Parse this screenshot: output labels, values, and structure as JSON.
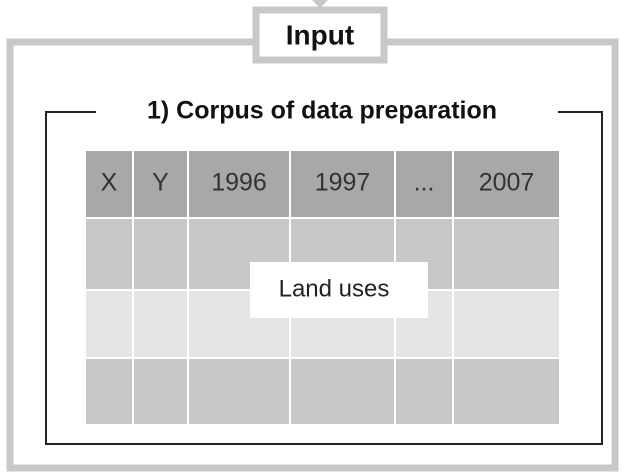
{
  "header": {
    "title": "Input"
  },
  "section": {
    "title": "1) Corpus of data preparation"
  },
  "table": {
    "columns": [
      "X",
      "Y",
      "1996",
      "1997",
      "...",
      "2007"
    ],
    "label": "Land uses"
  }
}
